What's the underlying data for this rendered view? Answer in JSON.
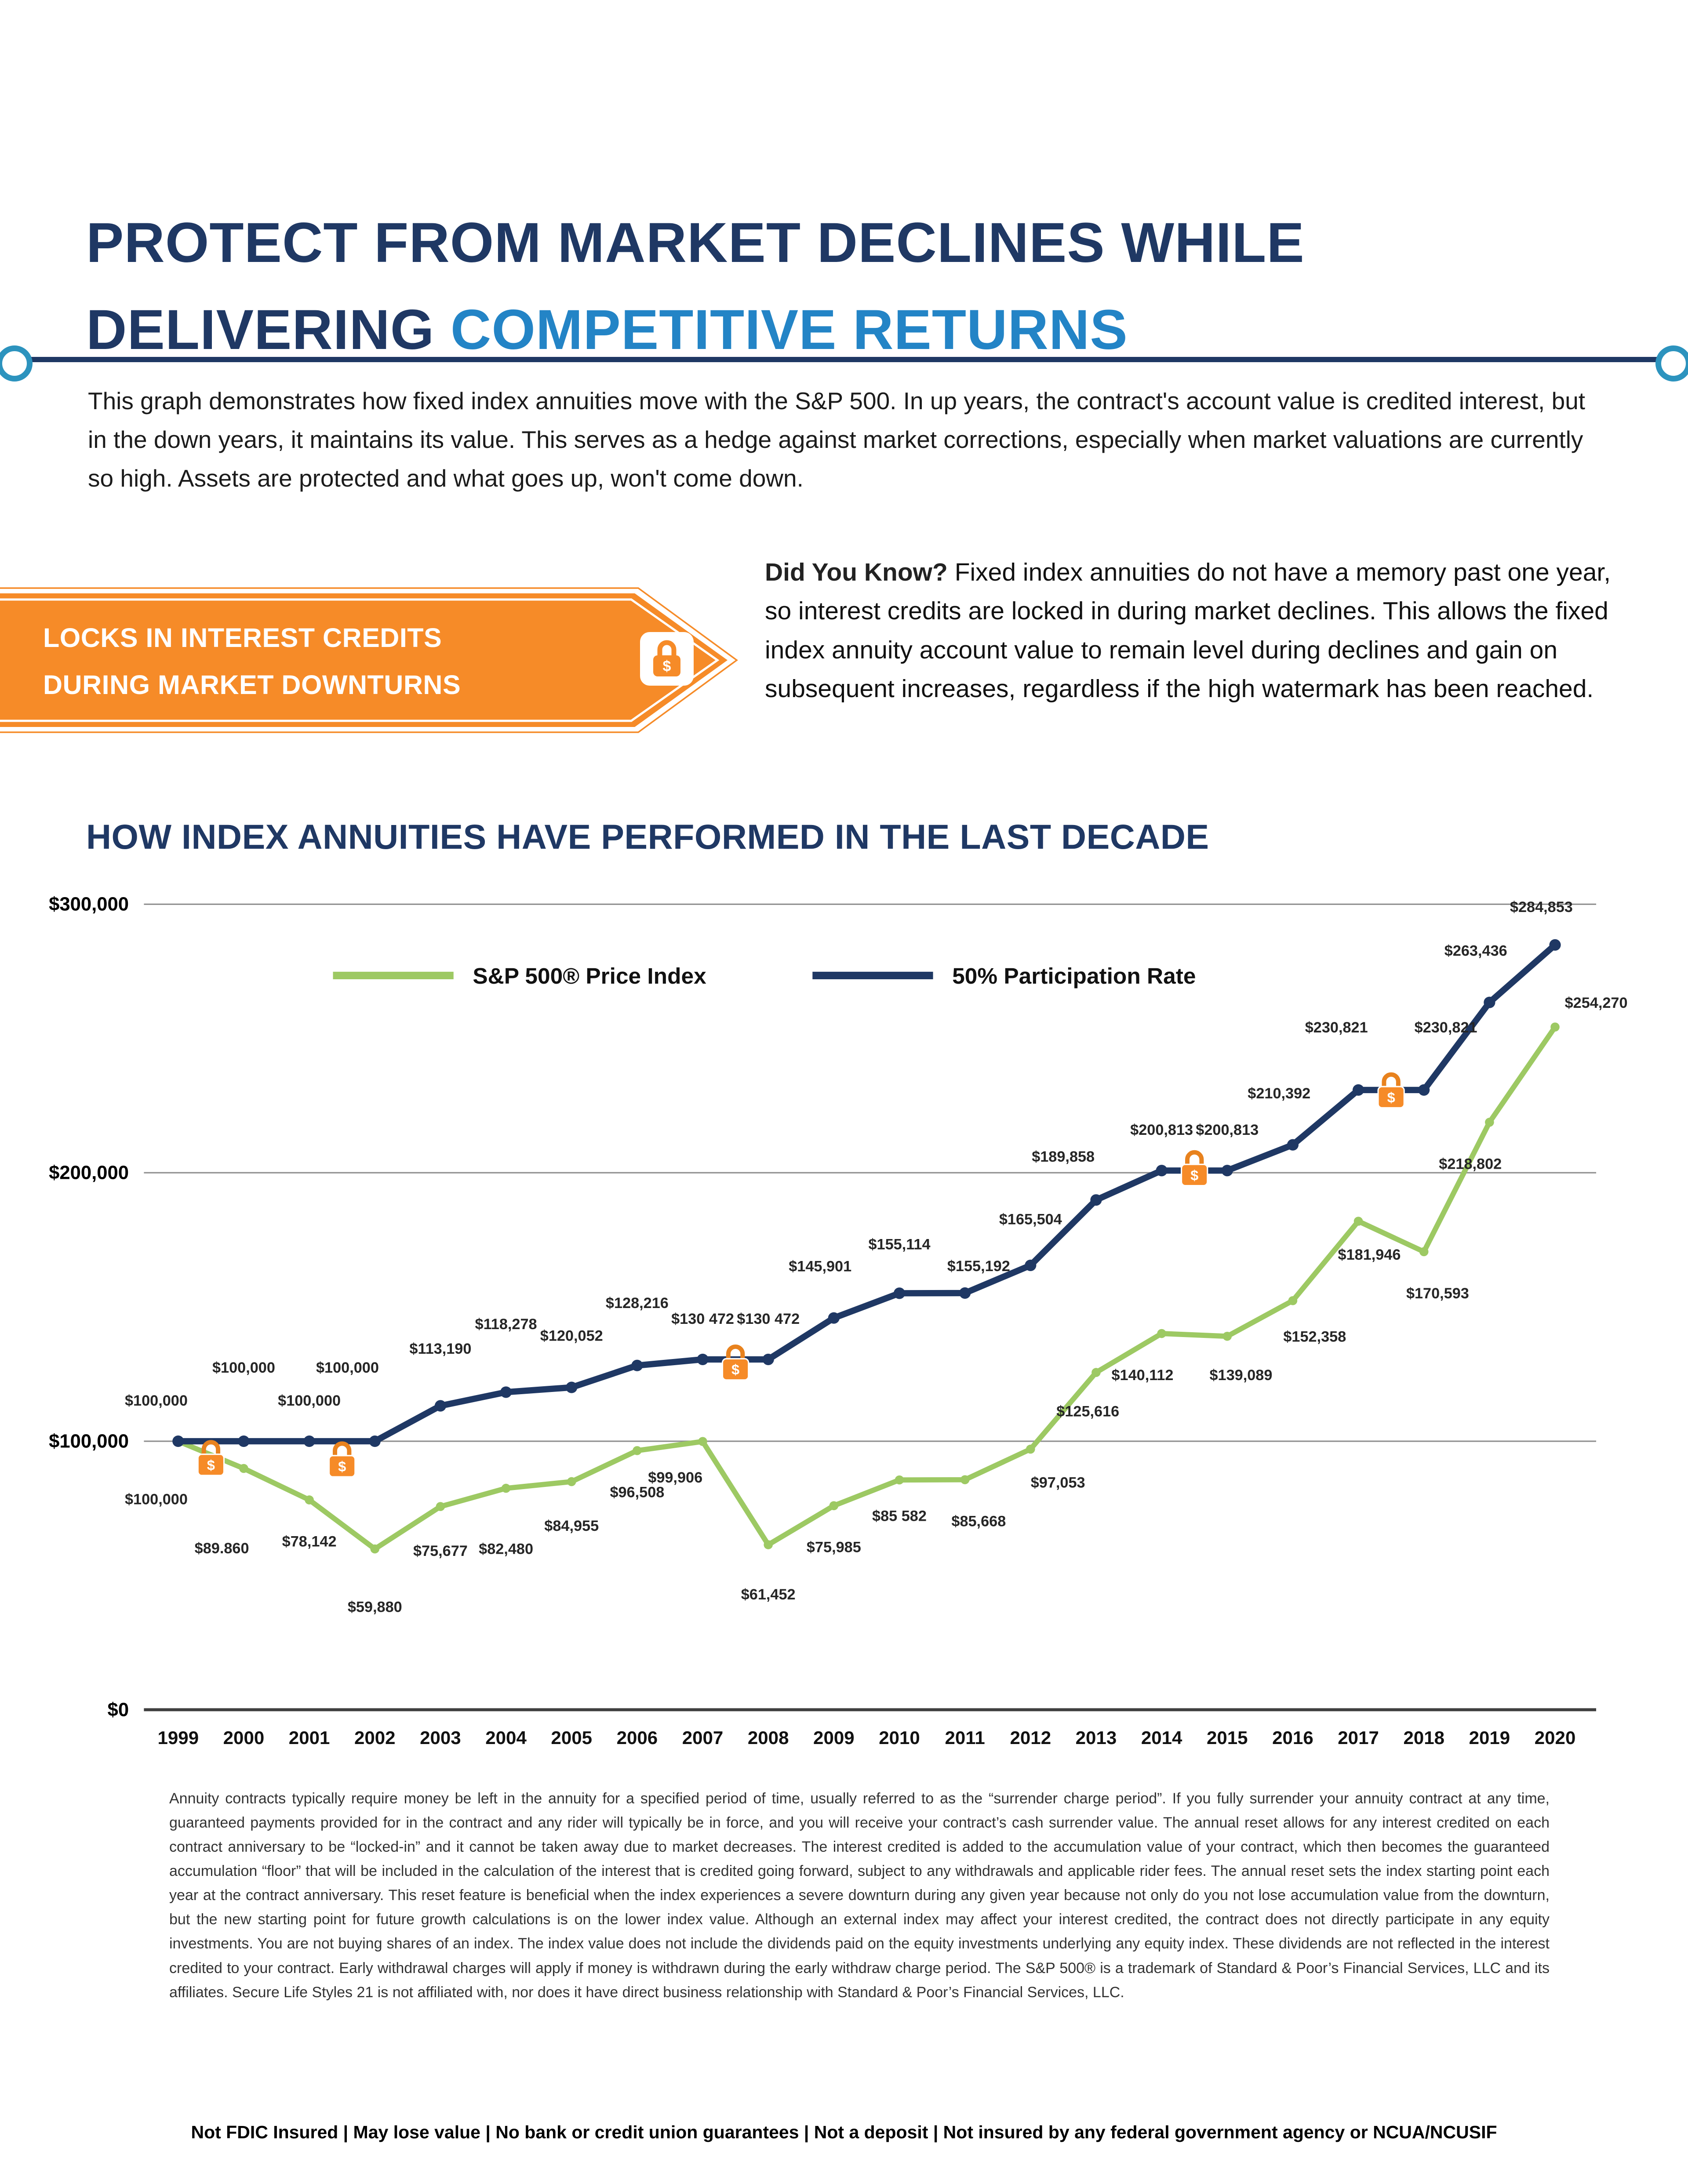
{
  "page": {
    "title": {
      "line1": "PROTECT FROM MARKET DECLINES WHILE",
      "line2_prefix": "DELIVERING ",
      "line2_highlight": "COMPETITIVE RETURNS"
    },
    "intro": "This graph demonstrates how fixed index annuities move with the S&P 500. In up years, the contract's account value is credited interest, but in the down years, it maintains its value. This serves as a hedge against market corrections, especially when market valuations are currently so high. Assets are protected and what goes up, won't come down.",
    "banner": {
      "line1": "LOCKS IN INTEREST CREDITS",
      "line2": "DURING MARKET DOWNTURNS",
      "lock_glyph": "$"
    },
    "did_you_know": {
      "label": "Did You Know?",
      "text": "Fixed index annuities do not have a memory past one year, so interest credits are locked in during market declines. This allows the fixed index annuity account value to remain level during declines and gain on subsequent increases, regardless if the high watermark has been reached."
    },
    "chart_heading": "HOW INDEX ANNUITIES HAVE PERFORMED IN THE LAST DECADE",
    "disclaimer": "Annuity contracts typically require money be left in the annuity for a specified period of time, usually referred to as the “surrender charge period”. If you fully surrender your annuity contract at any time, guaranteed payments provided for in the contract and any rider will typically be in force, and you will receive your contract’s cash surrender value. The annual reset allows for any interest credited on each contract anniversary to be “locked-in” and it cannot be taken away due to market decreases. The interest credited is added to the accumulation value of your contract, which then becomes the guaranteed accumulation “floor” that will be included in the calculation of the interest that is credited going forward, subject to any withdrawals and applicable rider fees. The annual reset sets the index starting point each year at the contract anniversary. This reset feature is beneficial when the index experiences a severe downturn during any given year because not only do you not lose accumulation value from the downturn, but the new starting point for future growth calculations is on the lower index value. Although an external index may affect your interest credited, the contract does not directly participate in any equity investments. You are not buying shares of an index. The index value does not include the dividends paid on the equity investments underlying any equity index. These dividends are not reflected in the interest credited to your contract. Early withdrawal charges will apply if money is withdrawn during the early withdraw charge period. The S&P 500® is a trademark of Standard & Poor’s Financial Services, LLC and its affiliates. Secure Life Styles 21 is not affiliated with, nor does it have direct business relationship with Standard & Poor’s Financial Services, LLC.",
    "footer": "Not FDIC Insured | May lose value | No bank or credit union guarantees | Not a deposit | Not insured by any federal government agency or NCUA/NCUSIF"
  },
  "colors": {
    "navy": "#1F3864",
    "accent_blue": "#2384C6",
    "orange": "#F68B28",
    "green": "#9DC963",
    "ring_blue": "#2C93BE"
  },
  "chart_data": {
    "type": "line",
    "title": "HOW INDEX ANNUITIES HAVE PERFORMED IN THE LAST DECADE",
    "categories": [
      "1999",
      "2000",
      "2001",
      "2002",
      "2003",
      "2004",
      "2005",
      "2006",
      "2007",
      "2008",
      "2009",
      "2010",
      "2011",
      "2012",
      "2013",
      "2014",
      "2015",
      "2016",
      "2017",
      "2018",
      "2019",
      "2020"
    ],
    "ylim": [
      0,
      300000
    ],
    "yticks": [
      {
        "value": 0,
        "label": "$0"
      },
      {
        "value": 100000,
        "label": "$100,000"
      },
      {
        "value": 200000,
        "label": "$200,000"
      },
      {
        "value": 300000,
        "label": "$300,000"
      }
    ],
    "grid": "horizontal",
    "legend_position": "top-inside",
    "lock_glyph": "$",
    "series": [
      {
        "name": "S&P 500® Price Index",
        "color": "#9DC963",
        "label_side": "below",
        "values": [
          100000,
          89860,
          78142,
          59880,
          75677,
          82480,
          84955,
          96508,
          99906,
          61452,
          75985,
          85582,
          85668,
          97053,
          125616,
          140112,
          139089,
          152358,
          181946,
          170593,
          218802,
          254270
        ],
        "labels": [
          "$100,000",
          "$89.860",
          "$78,142",
          "$59,880",
          "$75,677",
          "$82,480",
          "$84,955",
          "$96,508",
          "$99,906",
          "$61,452",
          "$75,985",
          "$85 582",
          "$85,668",
          "$97,053",
          "$125,616",
          "$140,112",
          "$139,089",
          "$152,358",
          "$181,946",
          "$170,593",
          "$218,802",
          "$254,270"
        ],
        "label_dy": [
          46,
          62,
          34,
          46,
          36,
          48,
          36,
          34,
          30,
          40,
          34,
          30,
          34,
          28,
          32,
          34,
          32,
          30,
          28,
          34,
          34,
          -14
        ],
        "label_dx": [
          -16,
          -16,
          0,
          0,
          0,
          0,
          0,
          0,
          -20,
          0,
          0,
          0,
          10,
          20,
          -6,
          -14,
          10,
          16,
          8,
          10,
          -14,
          30
        ]
      },
      {
        "name": "50% Participation Rate",
        "color": "#1F3864",
        "label_side": "above",
        "values": [
          100000,
          100000,
          100000,
          100000,
          113190,
          118278,
          120052,
          128216,
          130472,
          130472,
          145901,
          155114,
          155192,
          165504,
          189858,
          200813,
          200813,
          210392,
          230821,
          230821,
          263436,
          284853
        ],
        "labels": [
          "$100,000",
          "$100,000",
          "$100,000",
          "$100,000",
          "$113,190",
          "$118,278",
          "$120,052",
          "$128,216",
          "$130 472",
          "$130 472",
          "$145,901",
          "$155,114",
          "$155,192",
          "$165,504",
          "$189,858",
          "$200,813",
          "$200,813",
          "$210,392",
          "$230,821",
          "$230,821",
          "$263,436",
          "$284,853"
        ],
        "label_dy": [
          -26,
          -50,
          -26,
          -50,
          -38,
          -46,
          -34,
          -42,
          -26,
          -26,
          -34,
          -32,
          -16,
          -30,
          -28,
          -26,
          -26,
          -34,
          -42,
          -42,
          -34,
          -24
        ],
        "label_dx": [
          -16,
          0,
          0,
          -20,
          0,
          0,
          0,
          0,
          0,
          0,
          -10,
          0,
          10,
          0,
          -24,
          0,
          0,
          -10,
          -16,
          16,
          -10,
          -10
        ]
      }
    ],
    "lock_markers": [
      {
        "between": [
          "1999",
          "2000"
        ],
        "value": 100000,
        "dy": 14
      },
      {
        "between": [
          "2001",
          "2002"
        ],
        "value": 100000,
        "dy": 15
      },
      {
        "between": [
          "2007",
          "2008"
        ],
        "value": 130472,
        "dy": 4
      },
      {
        "between": [
          "2014",
          "2015"
        ],
        "value": 200813,
        "dy": 0
      },
      {
        "between": [
          "2017",
          "2018"
        ],
        "value": 230821,
        "dy": 2
      }
    ]
  }
}
